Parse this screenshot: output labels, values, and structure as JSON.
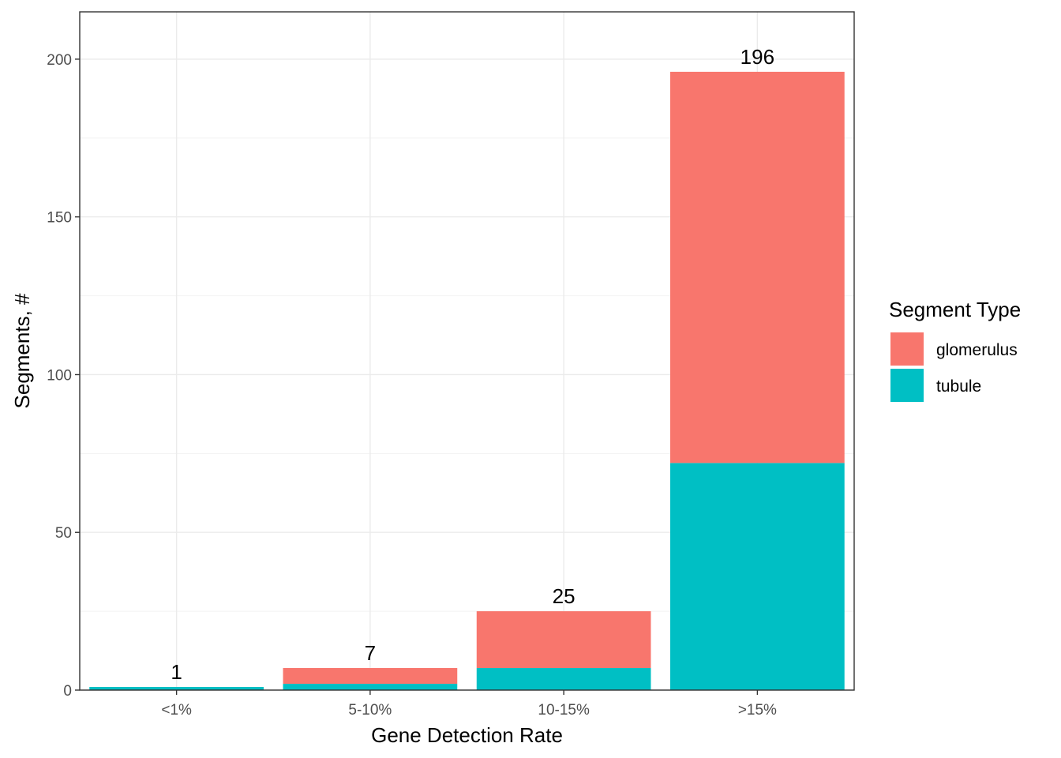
{
  "chart_data": {
    "type": "bar",
    "stacked": true,
    "categories": [
      "<1%",
      "5-10%",
      "10-15%",
      ">15%"
    ],
    "series": [
      {
        "name": "glomerulus",
        "color": "#F8766D",
        "values": [
          0,
          5,
          18,
          124
        ]
      },
      {
        "name": "tubule",
        "color": "#00BFC4",
        "values": [
          1,
          2,
          7,
          72
        ]
      }
    ],
    "totals": [
      1,
      7,
      25,
      196
    ],
    "xlabel": "Gene Detection Rate",
    "ylabel": "Segments, #",
    "ylim": [
      0,
      215
    ],
    "yticks": [
      0,
      50,
      100,
      150,
      200
    ],
    "grid": true,
    "legend": {
      "title": "Segment Type",
      "position": "right"
    }
  }
}
